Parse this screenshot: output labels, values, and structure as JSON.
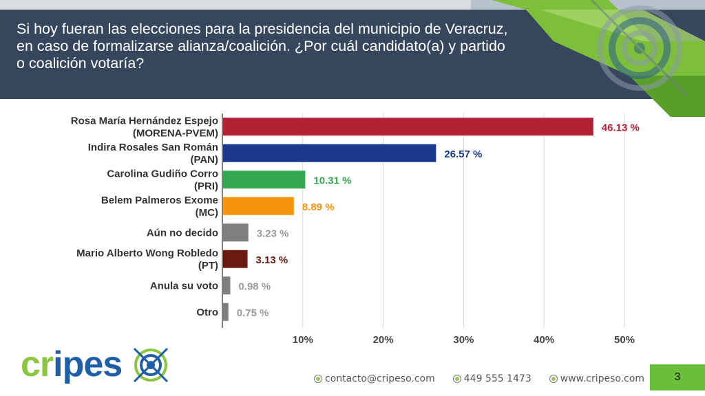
{
  "slide": {
    "title": "Si hoy fueran las elecciones para la presidencia del municipio de Veracruz, en caso de formalizarse alianza/coalición. ¿Por cuál candidato(a) y partido o coalición votaría?",
    "page_number": "3"
  },
  "brand": {
    "logo_text_green": "cr",
    "logo_text_i": "i",
    "logo_text_blue": "pes",
    "colors": {
      "green": "#8cc63f",
      "blue": "#1e5fa8",
      "title_bg": "#36475d"
    }
  },
  "footer": {
    "email": "contacto@cripeso.com",
    "phone": "449 555 1473",
    "web": "www.cripeso.com"
  },
  "chart_data": {
    "type": "bar",
    "orientation": "horizontal",
    "categories": [
      [
        "Rosa María Hernández Espejo",
        "(MORENA-PVEM)"
      ],
      [
        "Indira Rosales San Román",
        "(PAN)"
      ],
      [
        "Carolina Gudiño Corro",
        "(PRI)"
      ],
      [
        "Belem Palmeros Exome",
        "(MC)"
      ],
      [
        "Aún no decido"
      ],
      [
        "Mario Alberto Wong Robledo",
        "(PT)"
      ],
      [
        "Anula su voto"
      ],
      [
        "Otro"
      ]
    ],
    "values": [
      46.13,
      26.57,
      10.31,
      8.89,
      3.23,
      3.13,
      0.98,
      0.75
    ],
    "value_labels": [
      "46.13 %",
      "26.57 %",
      "10.31 %",
      "8.89 %",
      "3.23 %",
      "3.13 %",
      "0.98 %",
      "0.75 %"
    ],
    "colors": [
      "#b22234",
      "#1c3a8c",
      "#35a852",
      "#f7930d",
      "#7f7f7f",
      "#6b1a10",
      "#7f7f7f",
      "#7f7f7f"
    ],
    "label_colors": [
      "#b22234",
      "#1c3a8c",
      "#35a852",
      "#f7930d",
      "#9a9a9a",
      "#6b1a10",
      "#9a9a9a",
      "#9a9a9a"
    ],
    "x_ticks": [
      10,
      20,
      30,
      40,
      50
    ],
    "x_tick_labels": [
      "10%",
      "20%",
      "30%",
      "40%",
      "50%"
    ],
    "xlim": [
      0,
      50
    ],
    "grid": true
  }
}
